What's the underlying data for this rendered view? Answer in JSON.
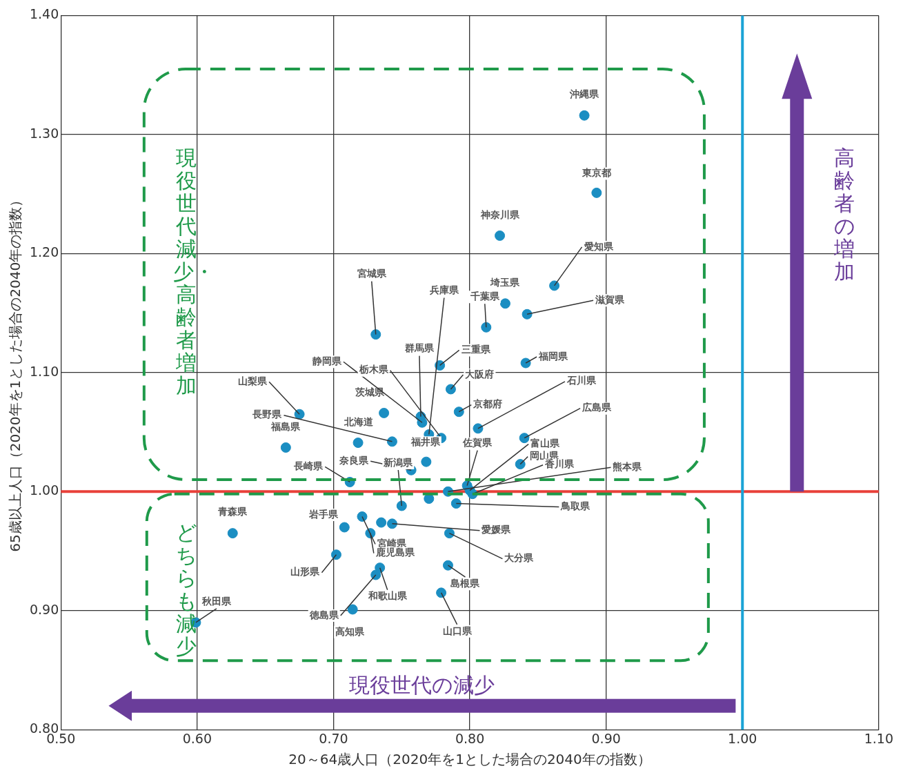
{
  "chart_data": {
    "type": "scatter",
    "xlabel": "20～64歳人口（2020年を1とした場合の2040年の指数）",
    "ylabel": "65歳以上人口（2020年を1とした場合の2040年の指数）",
    "x": [
      0.884,
      0.893,
      0.822,
      0.862,
      0.826,
      0.812,
      0.842,
      0.731,
      0.841,
      0.778,
      0.786,
      0.792,
      0.806,
      0.84,
      0.837,
      0.675,
      0.665,
      0.737,
      0.743,
      0.718,
      0.764,
      0.765,
      0.77,
      0.779,
      0.768,
      0.757,
      0.712,
      0.75,
      0.77,
      0.784,
      0.798,
      0.8,
      0.802,
      0.79,
      0.626,
      0.708,
      0.721,
      0.727,
      0.735,
      0.743,
      0.785,
      0.702,
      0.734,
      0.731,
      0.784,
      0.779,
      0.714,
      0.599
    ],
    "values": [
      1.316,
      1.251,
      1.215,
      1.173,
      1.158,
      1.138,
      1.149,
      1.132,
      1.108,
      1.106,
      1.086,
      1.067,
      1.053,
      1.045,
      1.023,
      1.065,
      1.037,
      1.066,
      1.042,
      1.041,
      1.063,
      1.058,
      1.048,
      1.045,
      1.025,
      1.018,
      1.008,
      0.988,
      0.994,
      1.0,
      1.005,
      1.001,
      0.998,
      0.99,
      0.965,
      0.97,
      0.979,
      0.965,
      0.974,
      0.973,
      0.965,
      0.947,
      0.936,
      0.93,
      0.938,
      0.915,
      0.901,
      0.89
    ],
    "color": "#1b8ec2",
    "marker": "circle",
    "xlim": [
      0.5,
      1.1
    ],
    "xticks": [
      {
        "value": 0.5,
        "label": "0.50"
      },
      {
        "value": 0.6,
        "label": "0.60"
      },
      {
        "value": 0.7,
        "label": "0.70"
      },
      {
        "value": 0.8,
        "label": "0.80"
      },
      {
        "value": 0.9,
        "label": "0.90"
      },
      {
        "value": 1.0,
        "label": "1.00"
      },
      {
        "value": 1.1,
        "label": "1.10"
      }
    ],
    "ylim": [
      0.8,
      1.4
    ],
    "yticks": [
      {
        "value": 0.8,
        "label": "0.80"
      },
      {
        "value": 0.9,
        "label": "0.90"
      },
      {
        "value": 1.0,
        "label": "1.00"
      },
      {
        "value": 1.1,
        "label": "1.10"
      },
      {
        "value": 1.2,
        "label": "1.20"
      },
      {
        "value": 1.3,
        "label": "1.30"
      },
      {
        "value": 1.4,
        "label": "1.40"
      }
    ],
    "grid": true,
    "legend": false,
    "ref_lines": [
      {
        "axis": "y",
        "value": 1.0,
        "color": "#e8413a"
      },
      {
        "axis": "x",
        "value": 1.0,
        "color": "#1aa3d6"
      }
    ],
    "annotations": [
      "現役世代減少・高齢者増加",
      "どちらも減少",
      "高齢者の増加",
      "現役世代の減少",
      {
        "text": "沖縄県",
        "x": 0.884,
        "y": 1.316
      },
      {
        "text": "東京都",
        "x": 0.893,
        "y": 1.251
      },
      {
        "text": "神奈川県",
        "x": 0.822,
        "y": 1.215
      },
      {
        "text": "愛知県",
        "x": 0.862,
        "y": 1.173
      },
      {
        "text": "埼玉県",
        "x": 0.826,
        "y": 1.158
      },
      {
        "text": "千葉県",
        "x": 0.812,
        "y": 1.138
      },
      {
        "text": "滋賀県",
        "x": 0.842,
        "y": 1.149
      },
      {
        "text": "宮城県",
        "x": 0.731,
        "y": 1.132
      },
      {
        "text": "福岡県",
        "x": 0.841,
        "y": 1.108
      },
      {
        "text": "三重県",
        "x": 0.778,
        "y": 1.106
      },
      {
        "text": "大阪府",
        "x": 0.786,
        "y": 1.086
      },
      {
        "text": "京都府",
        "x": 0.792,
        "y": 1.067
      },
      {
        "text": "石川県",
        "x": 0.806,
        "y": 1.053
      },
      {
        "text": "広島県",
        "x": 0.84,
        "y": 1.045
      },
      {
        "text": "岡山県",
        "x": 0.837,
        "y": 1.023
      },
      {
        "text": "山梨県",
        "x": 0.675,
        "y": 1.065
      },
      {
        "text": "福島県",
        "x": 0.665,
        "y": 1.037
      },
      {
        "text": "茨城県",
        "x": 0.737,
        "y": 1.066
      },
      {
        "text": "長野県",
        "x": 0.743,
        "y": 1.042
      },
      {
        "text": "北海道",
        "x": 0.718,
        "y": 1.041
      },
      {
        "text": "群馬県",
        "x": 0.764,
        "y": 1.063
      },
      {
        "text": "静岡県",
        "x": 0.765,
        "y": 1.058
      },
      {
        "text": "兵庫県",
        "x": 0.77,
        "y": 1.048
      },
      {
        "text": "栃木県",
        "x": 0.779,
        "y": 1.045
      },
      {
        "text": "福井県",
        "x": 0.768,
        "y": 1.025
      },
      {
        "text": "奈良県",
        "x": 0.757,
        "y": 1.018
      },
      {
        "text": "長崎県",
        "x": 0.712,
        "y": 1.008
      },
      {
        "text": "新潟県",
        "x": 0.75,
        "y": 0.988
      },
      {
        "text": "熊本県",
        "x": 0.784,
        "y": 1.0
      },
      {
        "text": "佐賀県",
        "x": 0.798,
        "y": 1.005
      },
      {
        "text": "富山県",
        "x": 0.8,
        "y": 1.001
      },
      {
        "text": "香川県",
        "x": 0.802,
        "y": 0.998
      },
      {
        "text": "鳥取県",
        "x": 0.79,
        "y": 0.99
      },
      {
        "text": "青森県",
        "x": 0.626,
        "y": 0.965
      },
      {
        "text": "岩手県",
        "x": 0.708,
        "y": 0.97
      },
      {
        "text": "宮崎県",
        "x": 0.721,
        "y": 0.979
      },
      {
        "text": "鹿児島県",
        "x": 0.727,
        "y": 0.965
      },
      {
        "text": "愛媛県",
        "x": 0.743,
        "y": 0.973
      },
      {
        "text": "大分県",
        "x": 0.785,
        "y": 0.965
      },
      {
        "text": "山形県",
        "x": 0.702,
        "y": 0.947
      },
      {
        "text": "和歌山県",
        "x": 0.734,
        "y": 0.936
      },
      {
        "text": "徳島県",
        "x": 0.731,
        "y": 0.93
      },
      {
        "text": "島根県",
        "x": 0.784,
        "y": 0.938
      },
      {
        "text": "山口県",
        "x": 0.779,
        "y": 0.915
      },
      {
        "text": "高知県",
        "x": 0.714,
        "y": 0.901
      },
      {
        "text": "秋田県",
        "x": 0.599,
        "y": 0.89
      }
    ]
  }
}
